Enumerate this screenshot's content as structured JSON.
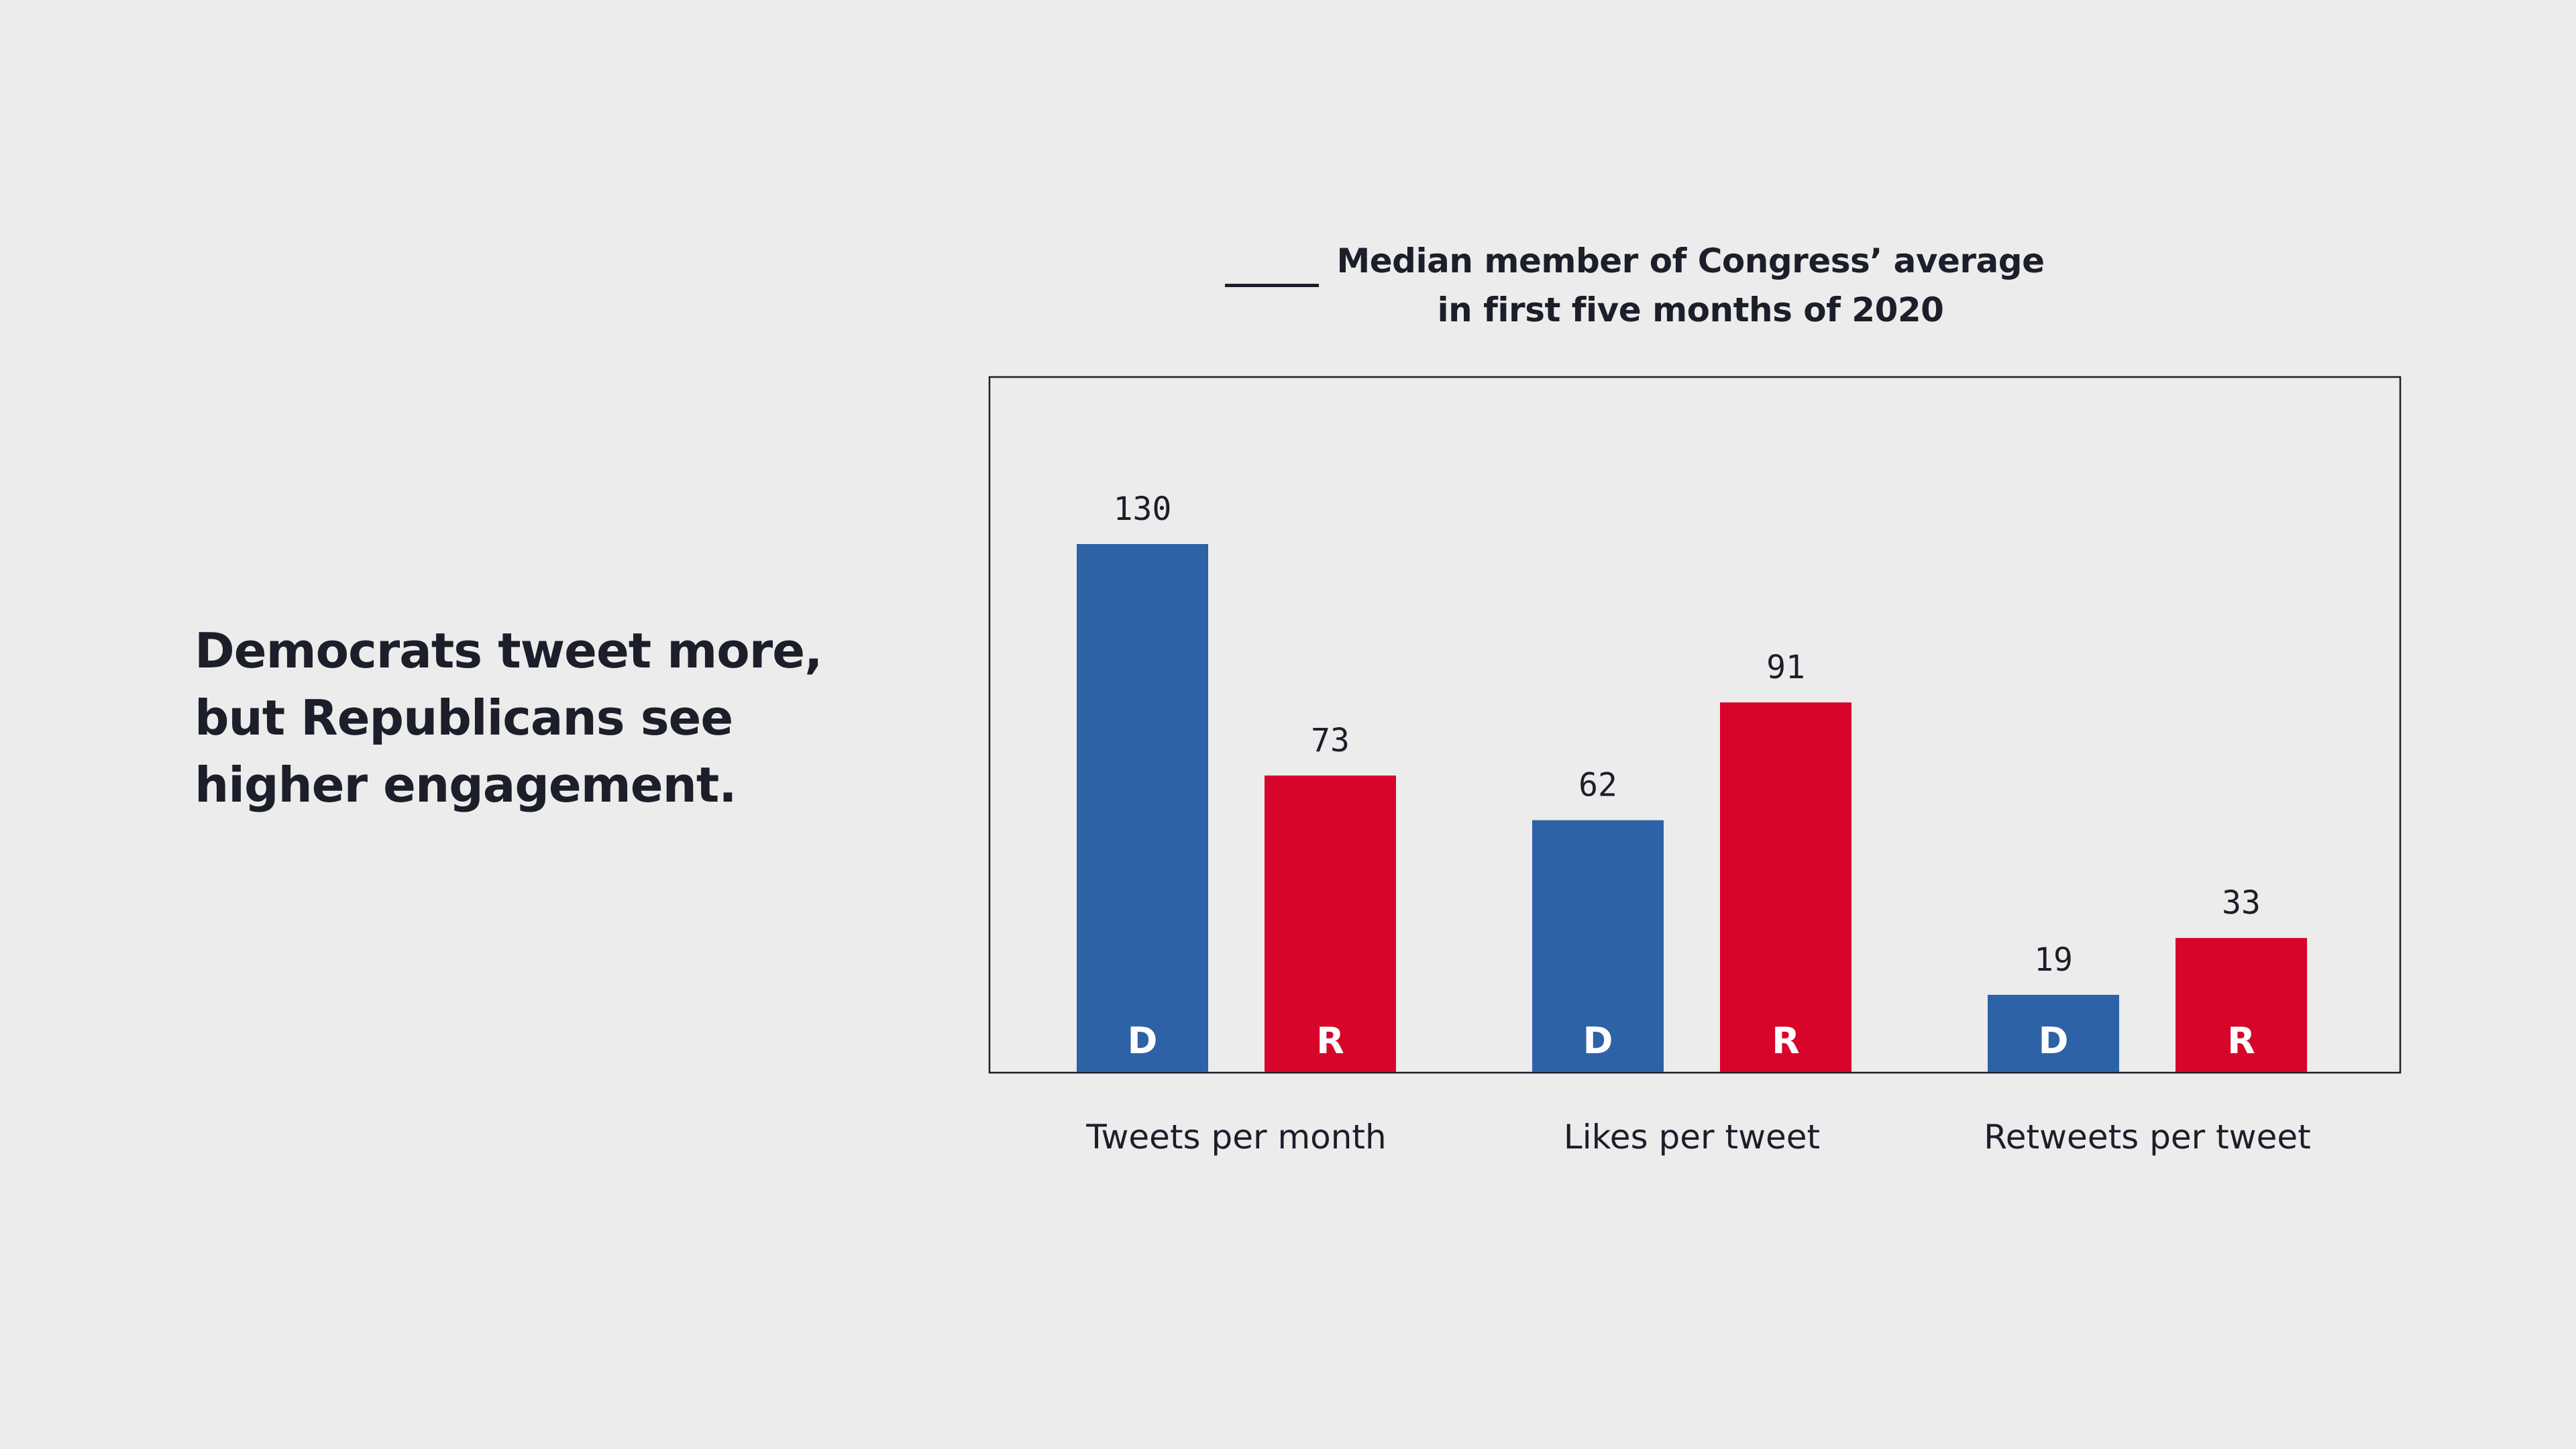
{
  "headline": {
    "line1": "Democrats tweet more,",
    "line2": "but Republicans see",
    "line3": "higher engagement."
  },
  "chart_data": {
    "type": "bar",
    "title_line1": "Median member of Congress’ average",
    "title_line2": "in first five months of 2020",
    "categories": [
      "Tweets per month",
      "Likes per tweet",
      "Retweets per tweet"
    ],
    "series": [
      {
        "letter": "D",
        "color": "#2d62a7",
        "values": [
          130,
          62,
          19
        ]
      },
      {
        "letter": "R",
        "color": "#d8052a",
        "values": [
          73,
          91,
          33
        ]
      }
    ],
    "ylim": [
      0,
      130
    ],
    "grid": false,
    "xlabel": "",
    "ylabel": ""
  }
}
